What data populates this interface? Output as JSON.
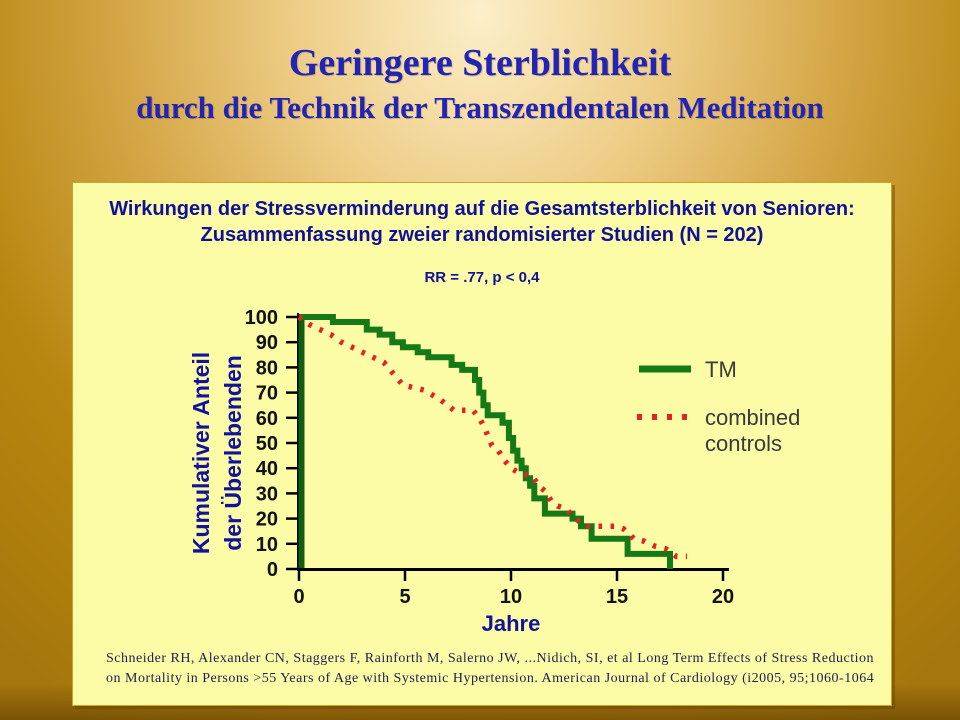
{
  "slide": {
    "title_line1": "Geringere Sterblichkeit",
    "title_line2": "durch die Technik der Transzendentalen Meditation"
  },
  "panel": {
    "heading_line1": "Wirkungen der Stressverminderung auf die Gesamtsterblichkeit von Senioren:",
    "heading_line2": "Zusammenfassung zweier randomisierter Studien (N = 202)",
    "stat_line": "RR = .77, p < 0,4",
    "citation": "Schneider RH, Alexander CN, Staggers F, Rainforth M, Salerno JW, ...Nidich, SI, et al  Long Term Effects of Stress Reduction on Mortality in Persons >55 Years of Age with Systemic Hypertension. American Journal of Cardiology (i2005, 95;1060-1064"
  },
  "chart_data": {
    "type": "line",
    "title": "",
    "xlabel": "Jahre",
    "ylabel": "Kumulativer Anteil der Überlebenden",
    "ylabel_lines": [
      "Kumulativer Anteil",
      "der Überlebenden"
    ],
    "xlim": [
      0,
      20
    ],
    "ylim": [
      0,
      100
    ],
    "x_ticks": [
      0,
      5,
      10,
      15,
      20
    ],
    "y_ticks": [
      0,
      10,
      20,
      30,
      40,
      50,
      60,
      70,
      80,
      90,
      100
    ],
    "grid": false,
    "legend_position": "right",
    "series": [
      {
        "name": "TM",
        "legend_lines": [
          "TM"
        ],
        "color": "#157a15",
        "line_style": "solid",
        "step": true,
        "points": [
          [
            0,
            100
          ],
          [
            1.6,
            100
          ],
          [
            1.6,
            98
          ],
          [
            3.2,
            98
          ],
          [
            3.2,
            95
          ],
          [
            3.8,
            95
          ],
          [
            3.8,
            93
          ],
          [
            4.4,
            93
          ],
          [
            4.4,
            90
          ],
          [
            4.9,
            90
          ],
          [
            4.9,
            88
          ],
          [
            5.6,
            88
          ],
          [
            5.6,
            86
          ],
          [
            6.1,
            86
          ],
          [
            6.1,
            84
          ],
          [
            7.2,
            84
          ],
          [
            7.2,
            81
          ],
          [
            7.7,
            81
          ],
          [
            7.7,
            79
          ],
          [
            8.3,
            79
          ],
          [
            8.3,
            75
          ],
          [
            8.5,
            75
          ],
          [
            8.5,
            70
          ],
          [
            8.7,
            70
          ],
          [
            8.7,
            65
          ],
          [
            8.9,
            65
          ],
          [
            8.9,
            61
          ],
          [
            9.6,
            61
          ],
          [
            9.6,
            58
          ],
          [
            9.9,
            58
          ],
          [
            9.9,
            52
          ],
          [
            10.1,
            52
          ],
          [
            10.1,
            47
          ],
          [
            10.3,
            47
          ],
          [
            10.3,
            43
          ],
          [
            10.5,
            43
          ],
          [
            10.5,
            40
          ],
          [
            10.7,
            40
          ],
          [
            10.7,
            36
          ],
          [
            10.9,
            36
          ],
          [
            10.9,
            33
          ],
          [
            11.1,
            33
          ],
          [
            11.1,
            28
          ],
          [
            11.6,
            28
          ],
          [
            11.6,
            22
          ],
          [
            12.9,
            22
          ],
          [
            12.9,
            20
          ],
          [
            13.3,
            20
          ],
          [
            13.3,
            17
          ],
          [
            13.8,
            17
          ],
          [
            13.8,
            12
          ],
          [
            15.5,
            12
          ],
          [
            15.5,
            6
          ],
          [
            17.5,
            6
          ],
          [
            17.5,
            0
          ]
        ]
      },
      {
        "name": "combined controls",
        "legend_lines": [
          "combined",
          "controls"
        ],
        "color": "#e32222",
        "line_style": "dotted",
        "step": false,
        "points": [
          [
            0,
            100
          ],
          [
            0.5,
            97
          ],
          [
            1,
            95
          ],
          [
            1.5,
            93
          ],
          [
            2,
            90
          ],
          [
            2.5,
            88
          ],
          [
            3,
            86
          ],
          [
            3.5,
            84
          ],
          [
            4,
            82
          ],
          [
            4.3,
            79
          ],
          [
            4.6,
            76
          ],
          [
            4.9,
            73
          ],
          [
            5.4,
            72
          ],
          [
            5.9,
            71
          ],
          [
            6.3,
            69
          ],
          [
            6.7,
            67
          ],
          [
            7,
            65
          ],
          [
            7.3,
            63
          ],
          [
            8.2,
            63
          ],
          [
            8.5,
            60
          ],
          [
            8.7,
            57
          ],
          [
            8.9,
            53
          ],
          [
            9.1,
            49
          ],
          [
            9.4,
            47
          ],
          [
            9.7,
            43
          ],
          [
            10,
            40
          ],
          [
            10.4,
            38
          ],
          [
            11,
            37
          ],
          [
            11.3,
            33
          ],
          [
            11.6,
            31
          ],
          [
            11.9,
            27
          ],
          [
            12.2,
            25
          ],
          [
            12.6,
            24
          ],
          [
            12.9,
            21
          ],
          [
            13.2,
            19
          ],
          [
            13.6,
            17
          ],
          [
            15,
            17
          ],
          [
            15.3,
            16
          ],
          [
            15.8,
            12
          ],
          [
            16.3,
            11
          ],
          [
            16.8,
            9
          ],
          [
            17.3,
            8
          ],
          [
            17.8,
            5
          ],
          [
            18.3,
            5
          ]
        ]
      }
    ]
  },
  "colors": {
    "background_gold": "#b8860f",
    "panel_bg": "#fcfca6",
    "title_blue": "#2323b4",
    "heading_navy": "#10109a",
    "tm_green": "#157a15",
    "controls_red": "#e32222",
    "axis_black": "#000000",
    "legend_text": "#3a3a3a",
    "citation_ink": "#1e1e50"
  }
}
